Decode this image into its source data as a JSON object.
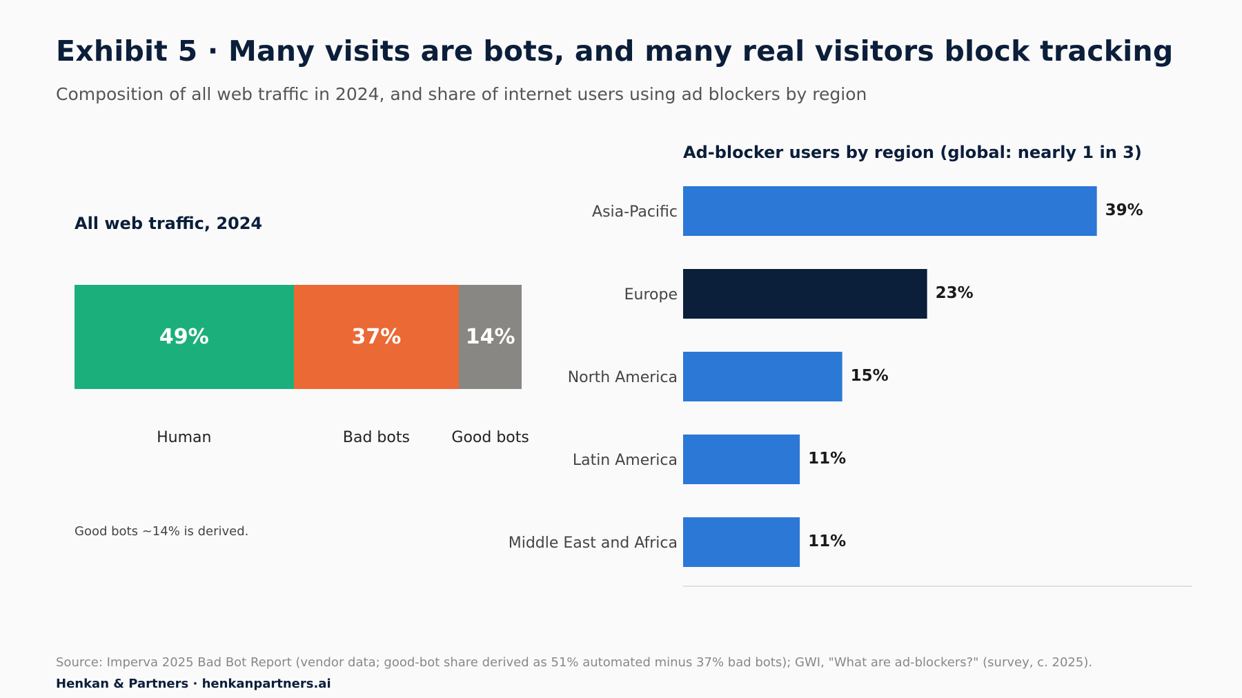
{
  "header": {
    "title": "Exhibit 5 · Many visits are bots, and many real visitors block tracking",
    "subtitle": "Composition of all web traffic in 2024, and share of internet users using ad blockers by region"
  },
  "chart_data": [
    {
      "type": "bar",
      "orientation": "stacked-horizontal",
      "title": "All web traffic, 2024",
      "categories": [
        "Human",
        "Bad bots",
        "Good bots"
      ],
      "values": [
        49,
        37,
        14
      ],
      "value_labels": [
        "49%",
        "37%",
        "14%"
      ],
      "colors": [
        "#1bb07b",
        "#eb6935",
        "#898784"
      ],
      "note": "Good bots ~14% is derived."
    },
    {
      "type": "bar",
      "orientation": "horizontal",
      "title": "Ad-blocker users by region (global: nearly 1 in 3)",
      "categories": [
        "Asia-Pacific",
        "Europe",
        "North America",
        "Latin America",
        "Middle East and Africa"
      ],
      "values": [
        39,
        23,
        15,
        11,
        11
      ],
      "value_labels": [
        "39%",
        "23%",
        "15%",
        "11%",
        "11%"
      ],
      "colors": [
        "#2b78d6",
        "#0b1e3a",
        "#2b78d6",
        "#2b78d6",
        "#2b78d6"
      ],
      "xlim": [
        0,
        48
      ],
      "grid": false
    }
  ],
  "footer": {
    "source": "Source: Imperva 2025 Bad Bot Report (vendor data; good-bot share derived as 51% automated minus 37% bad bots); GWI, \"What are ad-blockers?\" (survey, c. 2025).",
    "brand": "Henkan & Partners · henkanpartners.ai"
  }
}
